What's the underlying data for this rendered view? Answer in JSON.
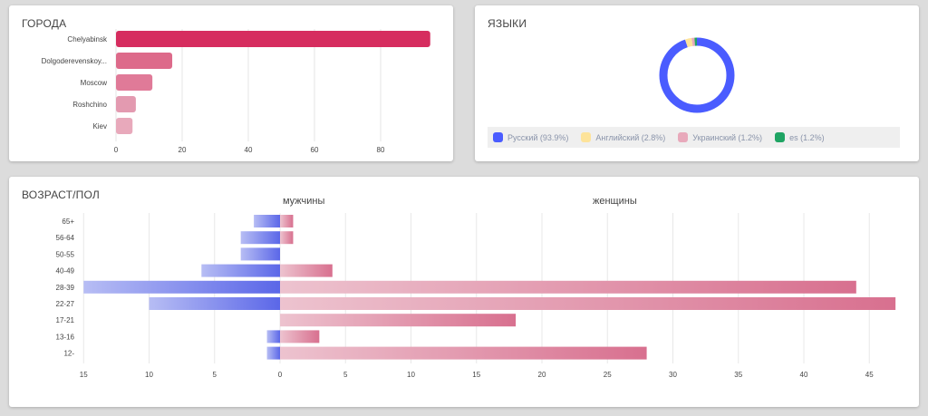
{
  "cities": {
    "title": "ГОРОДА",
    "chart_data": {
      "type": "bar",
      "orientation": "horizontal",
      "categories": [
        "Chelyabinsk",
        "Dolgoderevenskoy...",
        "Moscow",
        "Roshchino",
        "Kiev"
      ],
      "values": [
        95,
        17,
        11,
        6,
        5
      ],
      "xticks": [
        0,
        20,
        40,
        60,
        80
      ],
      "xlim": [
        0,
        100
      ],
      "colors": [
        "#d62d5f",
        "#dd6a8a",
        "#e07a98",
        "#e39ab0",
        "#e8a9bb"
      ]
    }
  },
  "languages": {
    "title": "ЯЗЫКИ",
    "chart_data": {
      "type": "pie",
      "donut": true,
      "categories": [
        "Русский",
        "Английский",
        "Украинский",
        "es"
      ],
      "values": [
        93.9,
        2.8,
        1.2,
        1.2
      ],
      "labels": [
        "Русский (93.9%)",
        "Английский (2.8%)",
        "Украинский (1.2%)",
        "es (1.2%)"
      ],
      "colors": [
        "#4a5cff",
        "#fde39a",
        "#e8a9bb",
        "#1fa463"
      ],
      "legend": "bottom"
    }
  },
  "age_gender": {
    "title": "ВОЗРАСТ/ПОЛ",
    "male_label": "мужчины",
    "female_label": "женщины",
    "chart_data": {
      "type": "bar",
      "orientation": "horizontal",
      "categories": [
        "65+",
        "56-64",
        "50-55",
        "40-49",
        "28-39",
        "22-27",
        "17-21",
        "13-16",
        "12-"
      ],
      "series": [
        {
          "name": "мужчины",
          "values": [
            2,
            3,
            3,
            6,
            15,
            10,
            0,
            1,
            1
          ],
          "color": "#5b67e8"
        },
        {
          "name": "женщины",
          "values": [
            1,
            1,
            0,
            4,
            44,
            47,
            18,
            3,
            28
          ],
          "color": "#d8708f"
        }
      ],
      "x_ticks": [
        "15",
        "10",
        "5",
        "0",
        "5",
        "10",
        "15",
        "20",
        "25",
        "30",
        "35",
        "40",
        "45"
      ],
      "male_xlim": [
        0,
        15
      ],
      "female_xlim": [
        0,
        47
      ],
      "grid": true
    }
  }
}
